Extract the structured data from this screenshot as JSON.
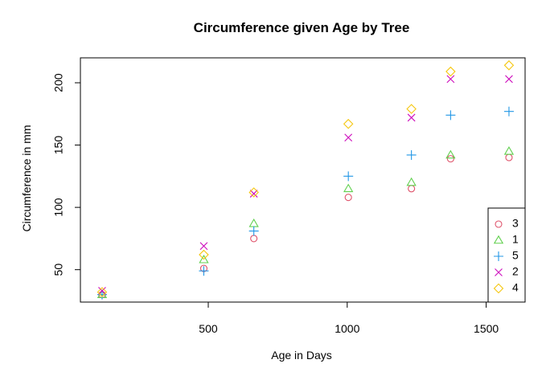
{
  "chart_data": {
    "type": "scatter",
    "title": "Circumference given Age by Tree",
    "xlabel": "Age in Days",
    "ylabel": "Circumference in mm",
    "xlim": [
      40,
      1640
    ],
    "ylim": [
      24,
      220
    ],
    "xticks": [
      500,
      1000,
      1500
    ],
    "yticks": [
      50,
      100,
      150,
      200
    ],
    "grid": false,
    "legend_position": "bottom-right",
    "x": [
      118,
      484,
      664,
      1004,
      1231,
      1372,
      1582
    ],
    "series": [
      {
        "name": "3",
        "marker": "circle",
        "color": "#DF536B",
        "values": [
          30,
          51,
          75,
          108,
          115,
          139,
          140
        ]
      },
      {
        "name": "1",
        "marker": "triangle",
        "color": "#61D04F",
        "values": [
          30,
          58,
          87,
          115,
          120,
          142,
          145
        ]
      },
      {
        "name": "5",
        "marker": "plus",
        "color": "#2297E6",
        "values": [
          30,
          49,
          81,
          125,
          142,
          174,
          177
        ]
      },
      {
        "name": "2",
        "marker": "cross",
        "color": "#CD0BBC",
        "values": [
          33,
          69,
          111,
          156,
          172,
          203,
          203
        ]
      },
      {
        "name": "4",
        "marker": "diamond",
        "color": "#F5C710",
        "values": [
          32,
          62,
          112,
          167,
          179,
          209,
          214
        ]
      }
    ]
  }
}
